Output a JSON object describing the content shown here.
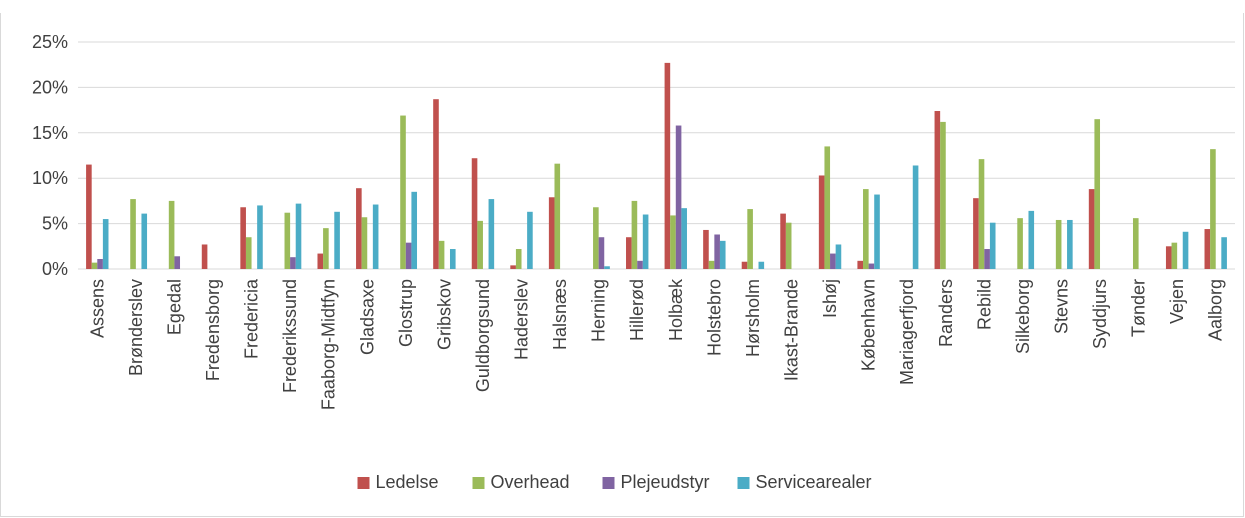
{
  "title": "",
  "colors": {
    "Ledelse": "#c0504d",
    "Overhead": "#9bbb59",
    "Plejeudstyr": "#8064a2",
    "Servicearealer": "#4bacc6",
    "grid": "#d9d9d9",
    "text": "#404040"
  },
  "chart_data": {
    "type": "bar",
    "title": "",
    "xlabel": "",
    "ylabel": "",
    "ylim": [
      0,
      0.25
    ],
    "yticks": [
      0,
      0.05,
      0.1,
      0.15,
      0.2,
      0.25
    ],
    "ytick_labels": [
      "0%",
      "5%",
      "10%",
      "15%",
      "20%",
      "25%"
    ],
    "grid": true,
    "legend_position": "bottom",
    "categories": [
      "Assens",
      "Brønderslev",
      "Egedal",
      "Fredensborg",
      "Fredericia",
      "Frederikssund",
      "Faaborg-Midtfyn",
      "Gladsaxe",
      "Glostrup",
      "Gribskov",
      "Guldborgsund",
      "Haderslev",
      "Halsnæs",
      "Herning",
      "Hillerød",
      "Holbæk",
      "Holstebro",
      "Hørsholm",
      "Ikast-Brande",
      "Ishøj",
      "København",
      "Mariagerfjord",
      "Randers",
      "Rebild",
      "Silkeborg",
      "Stevns",
      "Syddjurs",
      "Tønder",
      "Vejen",
      "Aalborg"
    ],
    "series": [
      {
        "name": "Ledelse",
        "values": [
          0.115,
          0,
          0,
          0.027,
          0.068,
          0,
          0.017,
          0.089,
          0,
          0.187,
          0.122,
          0.004,
          0.079,
          0,
          0.035,
          0.227,
          0.043,
          0.008,
          0.061,
          0.103,
          0.009,
          0,
          0.174,
          0.078,
          0,
          0,
          0.088,
          0,
          0.025,
          0.044
        ]
      },
      {
        "name": "Overhead",
        "values": [
          0.007,
          0.077,
          0.075,
          0,
          0.035,
          0.062,
          0.045,
          0.057,
          0.169,
          0.031,
          0.053,
          0.022,
          0.116,
          0.068,
          0.075,
          0.059,
          0.009,
          0.066,
          0.051,
          0.135,
          0.088,
          0,
          0.162,
          0.121,
          0.056,
          0.054,
          0.165,
          0.056,
          0.029,
          0.132
        ]
      },
      {
        "name": "Plejeudstyr",
        "values": [
          0.011,
          0,
          0.014,
          0,
          0,
          0.013,
          0,
          0,
          0.029,
          0,
          0,
          0,
          0,
          0.035,
          0.009,
          0.158,
          0.038,
          0,
          0,
          0.017,
          0.006,
          0,
          0,
          0.022,
          0,
          0,
          0,
          0,
          0,
          0
        ]
      },
      {
        "name": "Servicearealer",
        "values": [
          0.055,
          0.061,
          0,
          0,
          0.07,
          0.072,
          0.063,
          0.071,
          0.085,
          0.022,
          0.077,
          0.063,
          0,
          0.003,
          0.06,
          0.067,
          0.031,
          0.008,
          0,
          0.027,
          0.082,
          0.114,
          0,
          0.051,
          0.064,
          0.054,
          0,
          0,
          0.041,
          0.035
        ]
      }
    ]
  }
}
